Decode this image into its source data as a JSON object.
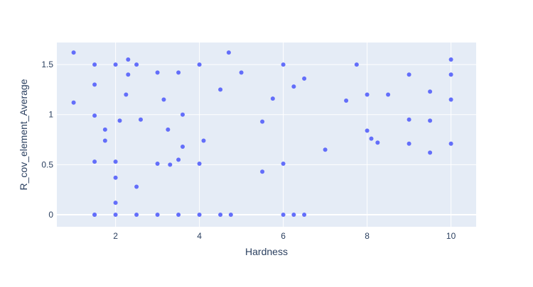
{
  "chart_data": {
    "type": "scatter",
    "title": "",
    "xlabel": "Hardness",
    "ylabel": "R_cov_element_Average",
    "xlim": [
      0.6,
      10.6
    ],
    "ylim": [
      -0.12,
      1.72
    ],
    "x_ticks": [
      2,
      4,
      6,
      8,
      10
    ],
    "x_tick_labels": [
      "2",
      "4",
      "6",
      "8",
      "10"
    ],
    "y_ticks": [
      0,
      0.5,
      1,
      1.5
    ],
    "y_tick_labels": [
      "0",
      "0.5",
      "1",
      "1.5"
    ],
    "grid": true,
    "legend": "none",
    "colors": {
      "marker": "#636efa",
      "plot_background": "#e5ecf6",
      "grid": "#ffffff",
      "text": "#2a3f5f"
    },
    "series": [
      {
        "x": [
          1.0,
          1.0,
          1.5,
          1.5,
          1.5,
          1.5,
          1.5,
          1.5,
          1.75,
          1.75,
          2.0,
          2.0,
          2.0,
          2.0,
          2.0,
          2.1,
          2.25,
          2.3,
          2.3,
          2.5,
          2.5,
          2.5,
          2.6,
          3.0,
          3.0,
          3.0,
          3.15,
          3.25,
          3.3,
          3.5,
          3.5,
          3.5,
          3.6,
          3.6,
          4.0,
          4.0,
          4.0,
          4.1,
          4.5,
          4.5,
          4.7,
          4.75,
          5.0,
          5.5,
          5.5,
          5.75,
          6.0,
          6.0,
          6.0,
          6.25,
          6.25,
          6.5,
          6.5,
          7.0,
          7.5,
          7.75,
          8.0,
          8.0,
          8.1,
          8.25,
          8.5,
          9.0,
          9.0,
          9.0,
          9.5,
          9.5,
          9.5,
          10.0,
          10.0,
          10.0,
          10.0
        ],
        "y": [
          1.62,
          1.12,
          1.5,
          1.3,
          0.53,
          0.99,
          0.0,
          0.0,
          0.85,
          0.74,
          1.5,
          0.37,
          0.12,
          0.0,
          0.53,
          0.94,
          1.2,
          1.55,
          1.4,
          0.28,
          0.0,
          1.5,
          0.95,
          0.0,
          0.51,
          1.42,
          1.15,
          0.85,
          0.5,
          0.0,
          1.42,
          0.55,
          0.68,
          1.0,
          0.0,
          1.5,
          0.51,
          0.74,
          0.0,
          1.25,
          1.62,
          0.0,
          1.42,
          0.43,
          0.93,
          1.16,
          0.0,
          1.5,
          0.51,
          0.0,
          1.28,
          1.36,
          0.0,
          0.65,
          1.14,
          1.5,
          1.2,
          0.84,
          0.76,
          0.72,
          1.2,
          1.4,
          0.71,
          0.95,
          1.23,
          0.62,
          0.94,
          1.55,
          1.4,
          0.71,
          1.15
        ]
      }
    ]
  }
}
